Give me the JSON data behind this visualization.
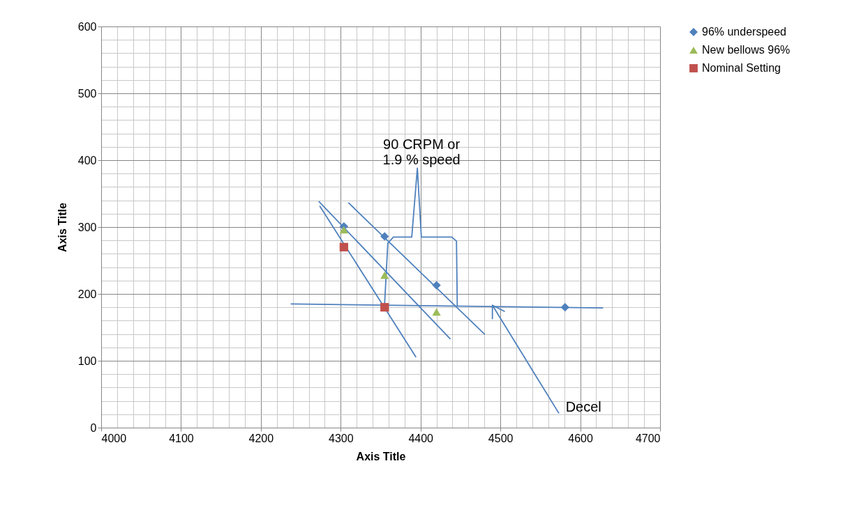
{
  "chart_data": {
    "type": "scatter",
    "xlabel": "Axis Title",
    "ylabel": "Axis Title",
    "xlim": [
      4000,
      4700
    ],
    "ylim": [
      0,
      600
    ],
    "xticks": [
      4000,
      4100,
      4200,
      4300,
      4400,
      4500,
      4600,
      4700
    ],
    "yticks": [
      0,
      100,
      200,
      300,
      400,
      500,
      600
    ],
    "grid": true,
    "legend": "right",
    "series": [
      {
        "name": "96% underspeed",
        "color": "#4f81bd",
        "marker": "diamond",
        "x": [
          4304,
          4355,
          4420,
          4581
        ],
        "values": [
          301,
          286,
          213,
          180
        ]
      },
      {
        "name": "New bellows 96%",
        "color": "#9bbb59",
        "marker": "triangle",
        "x": [
          4304,
          4355,
          4420
        ],
        "values": [
          296,
          228,
          173
        ]
      },
      {
        "name": "Nominal Setting",
        "color": "#c0504d",
        "marker": "square",
        "x": [
          4304,
          4355
        ],
        "values": [
          270,
          180
        ]
      },
      {
        "type": "line",
        "color": "#4f81bd",
        "marker": "none",
        "x": [
          4274,
          4394
        ],
        "values": [
          331,
          106
        ]
      },
      {
        "type": "line",
        "color": "#4f81bd",
        "marker": "none",
        "x": [
          4273,
          4437
        ],
        "values": [
          338,
          133
        ]
      },
      {
        "type": "line",
        "color": "#4f81bd",
        "marker": "none",
        "x": [
          4310,
          4480
        ],
        "values": [
          336,
          140
        ]
      },
      {
        "type": "line",
        "color": "#4f81bd",
        "marker": "none",
        "x": [
          4238,
          4628
        ],
        "values": [
          185,
          179
        ]
      },
      {
        "type": "line",
        "color": "#4f81bd",
        "marker": "none",
        "x": [
          4355,
          4359,
          4366,
          4389,
          4396,
          4401,
          4439,
          4445,
          4446
        ],
        "values": [
          185,
          276,
          285,
          285,
          388,
          285,
          285,
          279,
          182
        ]
      },
      {
        "type": "line",
        "color": "#4f81bd",
        "marker": "none",
        "x": [
          4573,
          4490,
          4490,
          4490,
          4505
        ],
        "values": [
          22,
          183,
          163,
          183,
          174
        ]
      }
    ],
    "annotations": [
      {
        "text": "90 CRPM or\n1.9 % speed",
        "x": 4396,
        "y": 388
      },
      {
        "text": "Decel",
        "x": 4573,
        "y": 22
      }
    ]
  }
}
